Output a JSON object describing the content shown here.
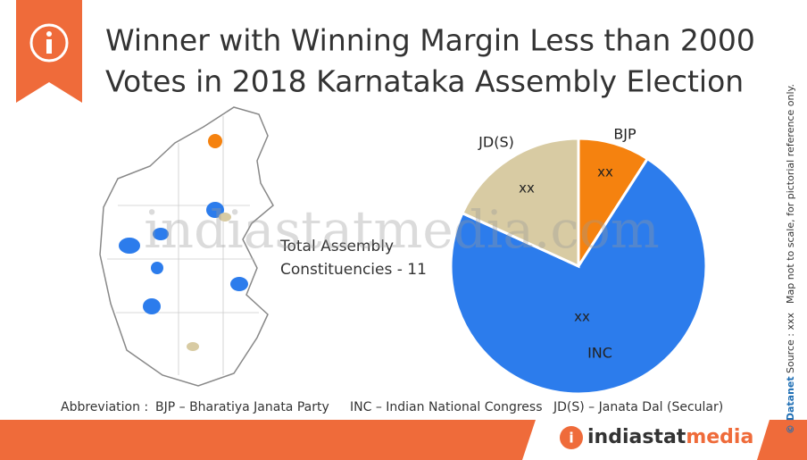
{
  "header": {
    "title_lines": [
      "Winner with Winning Margin Less than 2000",
      "Votes in 2018 Karnataka Assembly Election"
    ]
  },
  "chart_data": {
    "type": "pie",
    "categories": [
      "BJP",
      "INC",
      "JD(S)"
    ],
    "values": [
      1,
      8,
      2
    ],
    "value_labels": [
      "xx",
      "xx",
      "xx"
    ],
    "colors": [
      "#f5820f",
      "#2c7cec",
      "#d8cba3"
    ],
    "annotation_lines": [
      "Total Assembly",
      "Constituencies - 11"
    ]
  },
  "abbreviation": {
    "label": "Abbreviation :",
    "items": [
      "BJP – Bharatiya Janata Party",
      "INC – Indian National Congress",
      "JD(S) – Janata Dal (Secular)"
    ]
  },
  "side_notes": {
    "brand": "© Datanet",
    "source": "Source : xxx",
    "note": "Map not to scale, for pictorial reference only."
  },
  "watermark": "indiastatmedia.com",
  "footer": {
    "logo_parts": [
      "indiastat",
      "media"
    ]
  }
}
